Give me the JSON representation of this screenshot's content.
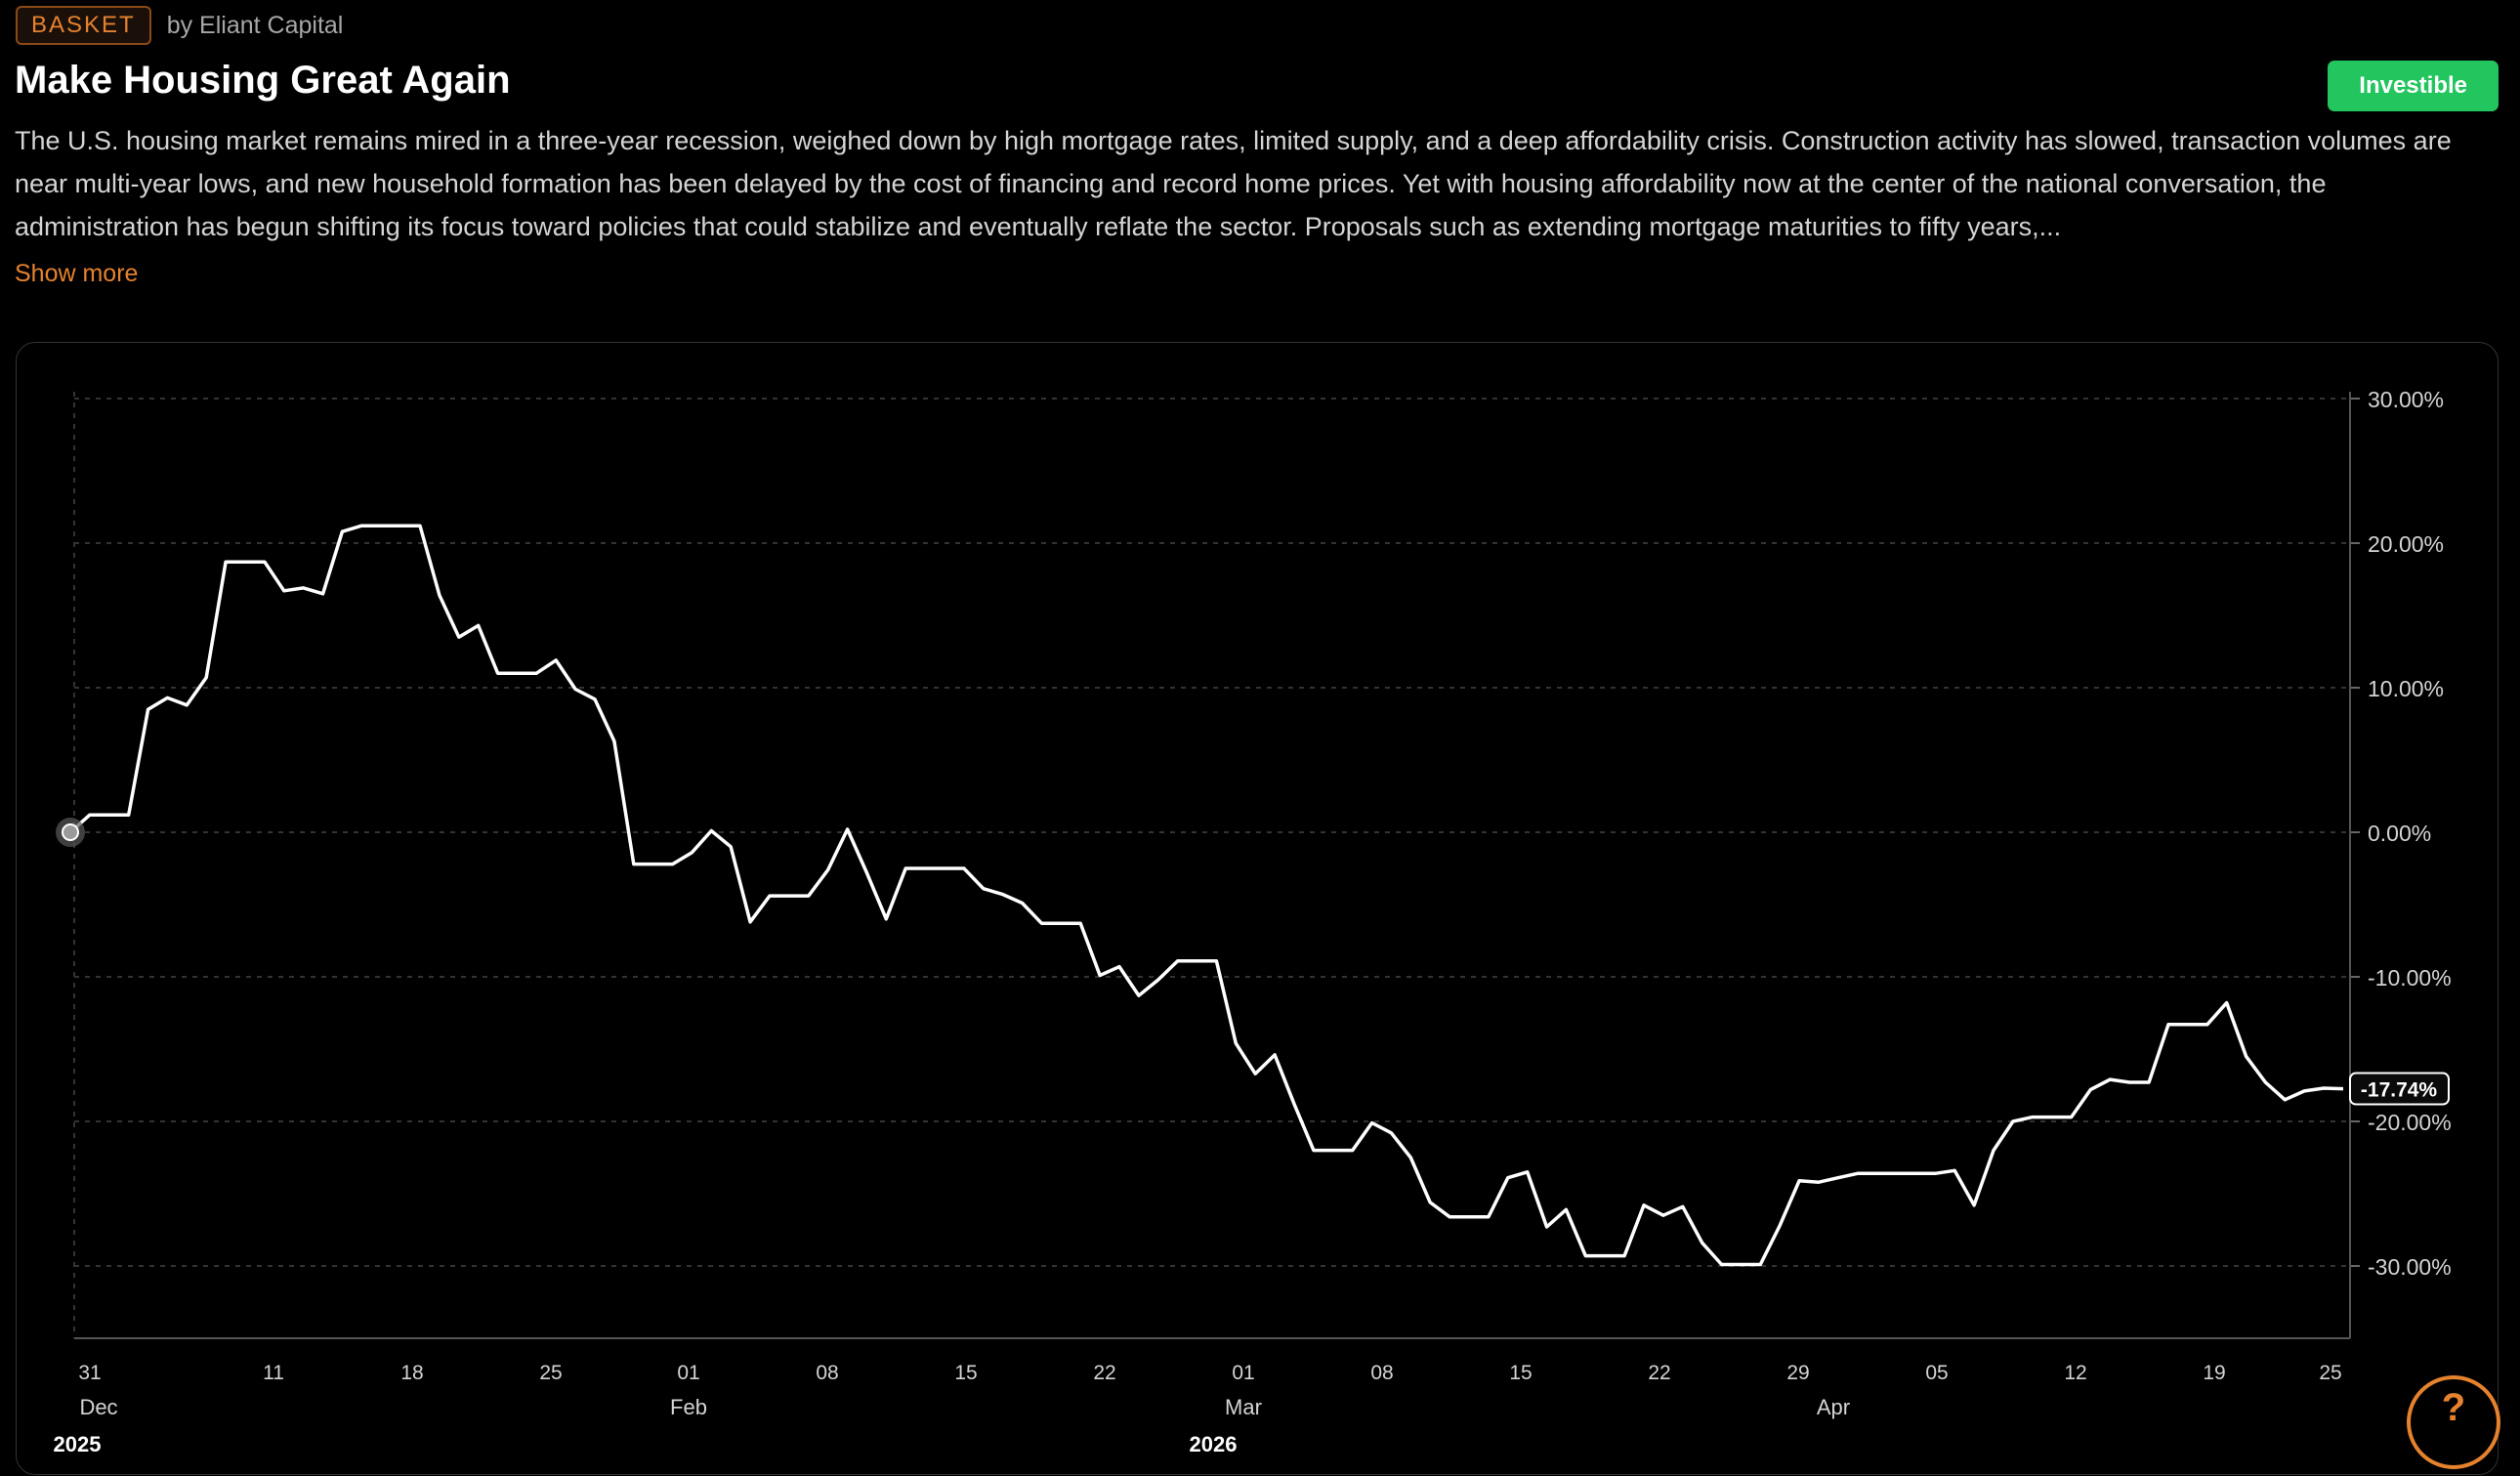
{
  "header": {
    "badge": "BASKET",
    "author": "by Eliant Capital",
    "title": "Make Housing Great Again",
    "status_button": "Investible"
  },
  "description": "The U.S. housing market remains mired in a three-year recession, weighed down by high mortgage rates, limited supply, and a deep affordability crisis. Construction activity has slowed, transaction volumes are near multi-year lows, and new household formation has been delayed by the cost of financing and record home prices. Yet with housing affordability now at the center of the national conversation, the administration has begun shifting its focus toward policies that could stabilize and eventually reflate the sector. Proposals such as extending mortgage maturities to fifty years,...",
  "show_more": "Show more",
  "help_label": "?",
  "colors": {
    "accent": "#e5822e",
    "investible": "#22c55e",
    "line": "#ffffff",
    "grid": "#333333"
  },
  "chart_data": {
    "type": "line",
    "y_unit": "%",
    "ylim": [
      -35,
      30
    ],
    "y_ticks": [
      "30.00%",
      "20.00%",
      "10.00%",
      "0.00%",
      "-10.00%",
      "-20.00%",
      "-30.00%"
    ],
    "x_tick_labels": [
      "31",
      "11",
      "18",
      "25",
      "01",
      "08",
      "15",
      "22",
      "01",
      "08",
      "15",
      "22",
      "29",
      "05",
      "12",
      "19",
      "25"
    ],
    "x_month_labels": [
      "Dec",
      "Feb",
      "Mar",
      "Apr"
    ],
    "x_year_labels": [
      "2025",
      "2026"
    ],
    "last_value_label": "-17.74%",
    "grid": true,
    "series": [
      {
        "values": [
          0.0,
          1.2,
          1.2,
          1.2,
          8.5,
          9.3,
          8.8,
          10.7,
          18.7,
          18.7,
          18.7,
          16.7,
          16.9,
          16.5,
          20.8,
          21.2,
          21.2,
          21.2,
          21.2,
          16.4,
          13.5,
          14.3,
          11.0,
          11.0,
          11.0,
          11.9,
          9.9,
          9.2,
          6.3,
          -2.2,
          -2.2,
          -2.2,
          -1.4,
          0.1,
          -1.0,
          -6.2,
          -4.4,
          -4.4,
          -4.4,
          -2.6,
          0.2,
          -2.8,
          -6.0,
          -2.5,
          -2.5,
          -2.5,
          -2.5,
          -3.9,
          -4.3,
          -4.9,
          -6.3,
          -6.3,
          -6.3,
          -9.9,
          -9.3,
          -11.3,
          -10.2,
          -8.9,
          -8.9,
          -8.9,
          -14.6,
          -16.7,
          -15.4,
          -18.8,
          -22.0,
          -22.0,
          -22.0,
          -20.1,
          -20.8,
          -22.5,
          -25.6,
          -26.6,
          -26.6,
          -26.6,
          -23.9,
          -23.5,
          -27.3,
          -26.1,
          -29.3,
          -29.3,
          -29.3,
          -25.8,
          -26.5,
          -25.9,
          -28.4,
          -29.9,
          -29.9,
          -29.9,
          -27.2,
          -24.1,
          -24.2,
          -23.9,
          -23.6,
          -23.6,
          -23.6,
          -23.6,
          -23.6,
          -23.4,
          -25.8,
          -22.0,
          -20.0,
          -19.7,
          -19.7,
          -19.7,
          -17.8,
          -17.1,
          -17.3,
          -17.3,
          -13.3,
          -13.3,
          -13.3,
          -11.8,
          -15.5,
          -17.3,
          -18.5,
          -17.9,
          -17.7,
          -17.74
        ]
      }
    ]
  }
}
